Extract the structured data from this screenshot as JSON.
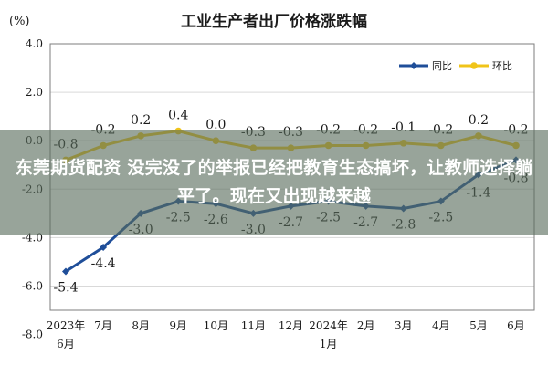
{
  "chart_data": {
    "type": "line",
    "title": "工业生产者出厂价格涨跌幅",
    "yunit": "(%)",
    "ylim": [
      -7.0,
      4.0
    ],
    "yticks": [
      "4.0",
      "2.0",
      "0.0",
      "-2.0",
      "-4.0",
      "-6.0",
      "-8.0"
    ],
    "ytick_values": [
      4,
      2,
      0,
      -2,
      -4,
      -6,
      -8
    ],
    "categories": [
      "2023年6月",
      "7月",
      "8月",
      "9月",
      "10月",
      "11月",
      "12月",
      "2024年1月",
      "2月",
      "3月",
      "4月",
      "5月",
      "6月"
    ],
    "legend_position": "top-right",
    "grid": true,
    "series": [
      {
        "name": "同比",
        "color": "#1f4e99",
        "values": [
          -5.4,
          -4.4,
          -3.0,
          -2.5,
          -2.6,
          -3.0,
          -2.7,
          -2.5,
          -2.7,
          -2.8,
          -2.5,
          -1.4,
          -0.8
        ],
        "labels": [
          "-5.4",
          "-4.4",
          "-3.0",
          "-2.5",
          "-2.6",
          "-3.0",
          "-2.7",
          "-2.5",
          "-2.7",
          "-2.8",
          "-2.5",
          "-1.4",
          "-0.8"
        ]
      },
      {
        "name": "环比",
        "color": "#f0c419",
        "values": [
          -0.8,
          -0.2,
          0.2,
          0.4,
          0.0,
          -0.3,
          -0.3,
          -0.2,
          -0.2,
          -0.1,
          -0.2,
          0.2,
          -0.2
        ],
        "labels": [
          "-0.8",
          "-0.2",
          "0.2",
          "0.4",
          "0.0",
          "-0.3",
          "-0.3",
          "-0.2",
          "-0.2",
          "-0.1",
          "-0.2",
          "0.2",
          "-0.2"
        ]
      }
    ]
  },
  "overlay": {
    "text": "东莞期货配资 没完没了的举报已经把教育生态搞坏，让教师选择躺平了。现在又出现越来越"
  }
}
